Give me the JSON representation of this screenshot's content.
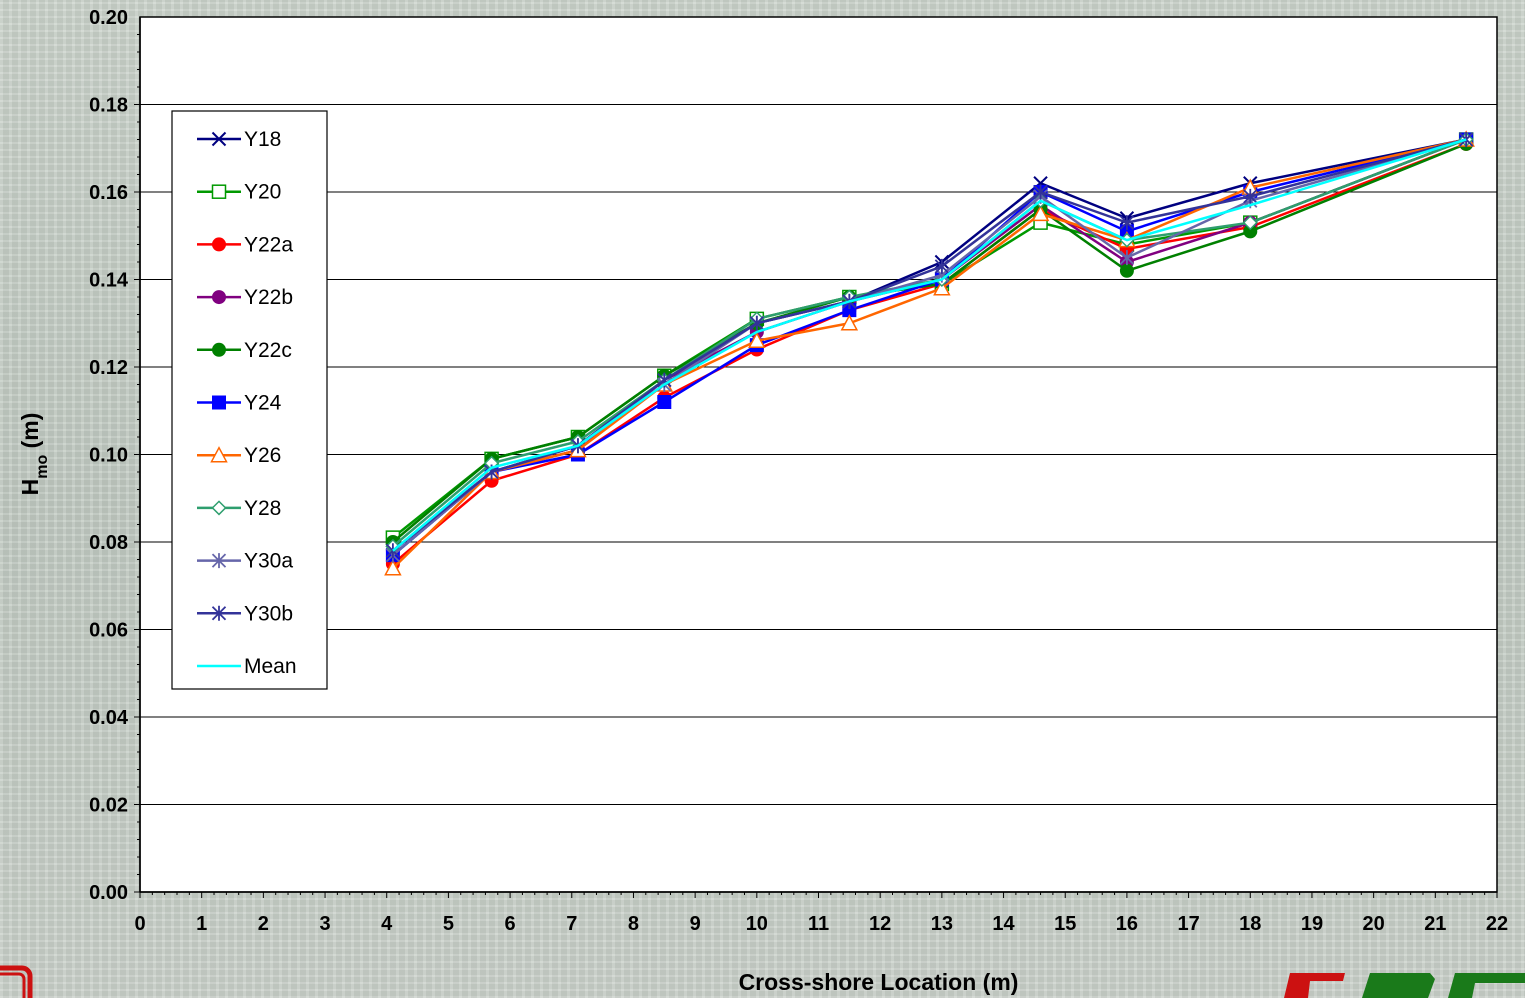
{
  "chart_data": {
    "type": "line",
    "title": "",
    "xlabel": "Cross-shore Location (m)",
    "ylabel_main": "H",
    "ylabel_sub": "mo",
    "ylabel_unit": " (m)",
    "xlim": [
      0,
      22
    ],
    "ylim": [
      0,
      0.2
    ],
    "x_ticks": [
      "0",
      "1",
      "2",
      "3",
      "4",
      "5",
      "6",
      "7",
      "8",
      "9",
      "10",
      "11",
      "12",
      "13",
      "14",
      "15",
      "16",
      "17",
      "18",
      "19",
      "20",
      "21",
      "22"
    ],
    "y_ticks": [
      "0.00",
      "0.02",
      "0.04",
      "0.06",
      "0.08",
      "0.10",
      "0.12",
      "0.14",
      "0.16",
      "0.18",
      "0.20"
    ],
    "grid": "horizontal",
    "legend_position": "top-left",
    "x": [
      4.1,
      5.7,
      7.1,
      8.5,
      10.0,
      11.5,
      13.0,
      14.6,
      16.0,
      18.0,
      21.5
    ],
    "series": [
      {
        "name": "Y18",
        "color": "#000080",
        "marker": "x",
        "values": [
          0.077,
          0.096,
          0.102,
          0.117,
          0.13,
          0.135,
          0.144,
          0.162,
          0.154,
          0.162,
          0.172
        ]
      },
      {
        "name": "Y20",
        "color": "#009900",
        "marker": "square-open",
        "values": [
          0.081,
          0.099,
          0.104,
          0.118,
          0.131,
          0.136,
          0.139,
          0.153,
          0.148,
          0.153,
          0.172
        ]
      },
      {
        "name": "Y22a",
        "color": "#ff0000",
        "marker": "circle",
        "values": [
          0.075,
          0.094,
          0.1,
          0.113,
          0.124,
          0.133,
          0.139,
          0.156,
          0.147,
          0.152,
          0.171
        ]
      },
      {
        "name": "Y22b",
        "color": "#800080",
        "marker": "circle",
        "values": [
          0.078,
          0.096,
          0.101,
          0.117,
          0.128,
          0.135,
          0.14,
          0.157,
          0.144,
          0.153,
          0.172
        ]
      },
      {
        "name": "Y22c",
        "color": "#008000",
        "marker": "circle",
        "values": [
          0.08,
          0.099,
          0.104,
          0.118,
          0.13,
          0.136,
          0.139,
          0.156,
          0.142,
          0.151,
          0.171
        ]
      },
      {
        "name": "Y24",
        "color": "#0000ff",
        "marker": "square",
        "values": [
          0.077,
          0.096,
          0.1,
          0.112,
          0.125,
          0.133,
          0.14,
          0.16,
          0.151,
          0.16,
          0.172
        ]
      },
      {
        "name": "Y26",
        "color": "#ff6600",
        "marker": "triangle-open",
        "values": [
          0.074,
          0.096,
          0.101,
          0.116,
          0.126,
          0.13,
          0.138,
          0.155,
          0.149,
          0.161,
          0.172
        ]
      },
      {
        "name": "Y28",
        "color": "#2e9e6e",
        "marker": "diamond-open",
        "values": [
          0.079,
          0.098,
          0.103,
          0.117,
          0.131,
          0.136,
          0.14,
          0.158,
          0.149,
          0.153,
          0.172
        ]
      },
      {
        "name": "Y30a",
        "color": "#6666aa",
        "marker": "star",
        "values": [
          0.077,
          0.096,
          0.102,
          0.116,
          0.13,
          0.135,
          0.141,
          0.159,
          0.145,
          0.158,
          0.172
        ]
      },
      {
        "name": "Y30b",
        "color": "#333399",
        "marker": "star",
        "values": [
          0.078,
          0.096,
          0.102,
          0.117,
          0.13,
          0.135,
          0.143,
          0.16,
          0.153,
          0.159,
          0.172
        ]
      },
      {
        "name": "Mean",
        "color": "#00ffff",
        "marker": "none",
        "values": [
          0.078,
          0.097,
          0.102,
          0.116,
          0.128,
          0.135,
          0.14,
          0.158,
          0.149,
          0.157,
          0.172
        ]
      }
    ]
  }
}
